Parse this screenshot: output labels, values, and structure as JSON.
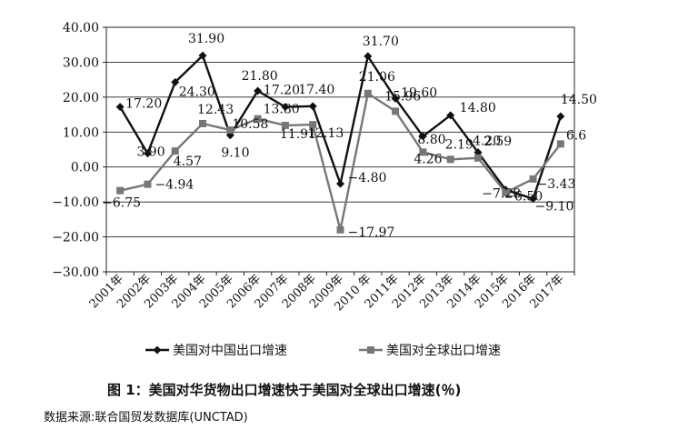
{
  "chart_data": {
    "type": "line",
    "categories": [
      "2001年",
      "2002年",
      "2003年",
      "2004年",
      "2005年",
      "2006年",
      "2007年",
      "2008年",
      "2009年",
      "2010 年",
      "2011年",
      "2012年",
      "2013年",
      "2014年",
      "2015年",
      "2016年",
      "2017年"
    ],
    "ylim": [
      -30,
      40
    ],
    "yticks": [
      "−30.00",
      "−20.00",
      "−10.00",
      "0.00",
      "10.00",
      "20.00",
      "30.00",
      "40.00"
    ],
    "grid": true,
    "legend_position": "bottom",
    "series": [
      {
        "name": "美国对中国出口增速",
        "color": "#111111",
        "marker": "diamond",
        "values": [
          17.2,
          3.9,
          24.3,
          31.9,
          9.1,
          21.8,
          17.2,
          17.4,
          -4.8,
          31.7,
          19.6,
          8.8,
          14.8,
          4.2,
          -6.5,
          -9.1,
          14.5
        ],
        "labels": [
          "17.20",
          "3.90",
          "24.30",
          "31.90",
          "9.10",
          "21.80",
          "17.20",
          "17.40",
          "−4.80",
          "31.70",
          "19.60",
          "8.80",
          "14.80",
          "4.20",
          "−6.50",
          "−9.10",
          "14.50"
        ]
      },
      {
        "name": "美国对全球出口增速",
        "color": "#777777",
        "marker": "square",
        "values": [
          -6.75,
          -4.94,
          4.57,
          12.43,
          10.58,
          13.8,
          11.91,
          12.13,
          -17.97,
          21.06,
          15.96,
          4.26,
          2.19,
          2.59,
          -7.28,
          -3.43,
          6.6
        ],
        "labels": [
          "−6.75",
          "−4.94",
          "4.57",
          "12.43",
          "10.58",
          "13.80",
          "11.91",
          "12.13",
          "−17.97",
          "21.06",
          "15.96",
          "4.26",
          "2.19",
          "2.59",
          "−7.28",
          "−3.43",
          "6.6"
        ]
      }
    ]
  },
  "caption": "图 1：美国对华货物出口增速快于美国对全球出口增速(％)",
  "source": "数据来源:联合国贸发数据库(UNCTAD)"
}
